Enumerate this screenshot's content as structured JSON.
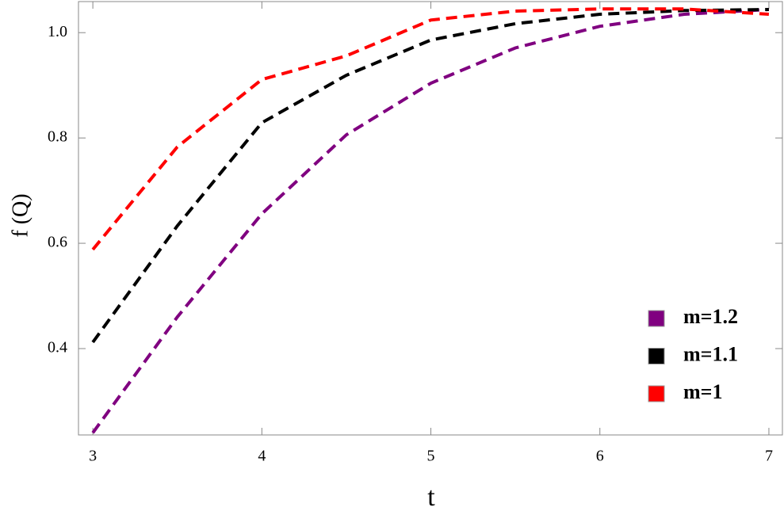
{
  "chart_data": {
    "type": "line",
    "x_label": "t",
    "y_label": "f (Q)",
    "x": [
      3,
      3.5,
      4,
      4.5,
      5,
      5.5,
      6,
      6.5,
      7
    ],
    "series": [
      {
        "name": "m=1.2",
        "color": "#800080",
        "values": [
          0.24,
          0.46,
          0.656,
          0.806,
          0.904,
          0.971,
          1.012,
          1.035,
          1.044
        ]
      },
      {
        "name": "m=1.1",
        "color": "#000000",
        "values": [
          0.412,
          0.633,
          0.829,
          0.919,
          0.986,
          1.017,
          1.035,
          1.042,
          1.044
        ]
      },
      {
        "name": "m=1",
        "color": "#ff0000",
        "values": [
          0.588,
          0.783,
          0.911,
          0.956,
          1.024,
          1.041,
          1.045,
          1.045,
          1.035
        ]
      }
    ],
    "xlim": [
      2.915,
      7.08
    ],
    "ylim": [
      0.236,
      1.059
    ],
    "xticks": [
      3,
      4,
      5,
      6,
      7
    ],
    "yticks": [
      {
        "value": 0.4,
        "label": "0.4"
      },
      {
        "value": 0.6,
        "label": "0.6"
      },
      {
        "value": 0.8,
        "label": "0.8"
      },
      {
        "value": 1.0,
        "label": "1.0"
      }
    ],
    "legend": "lower-right",
    "line_style": "dashed"
  }
}
